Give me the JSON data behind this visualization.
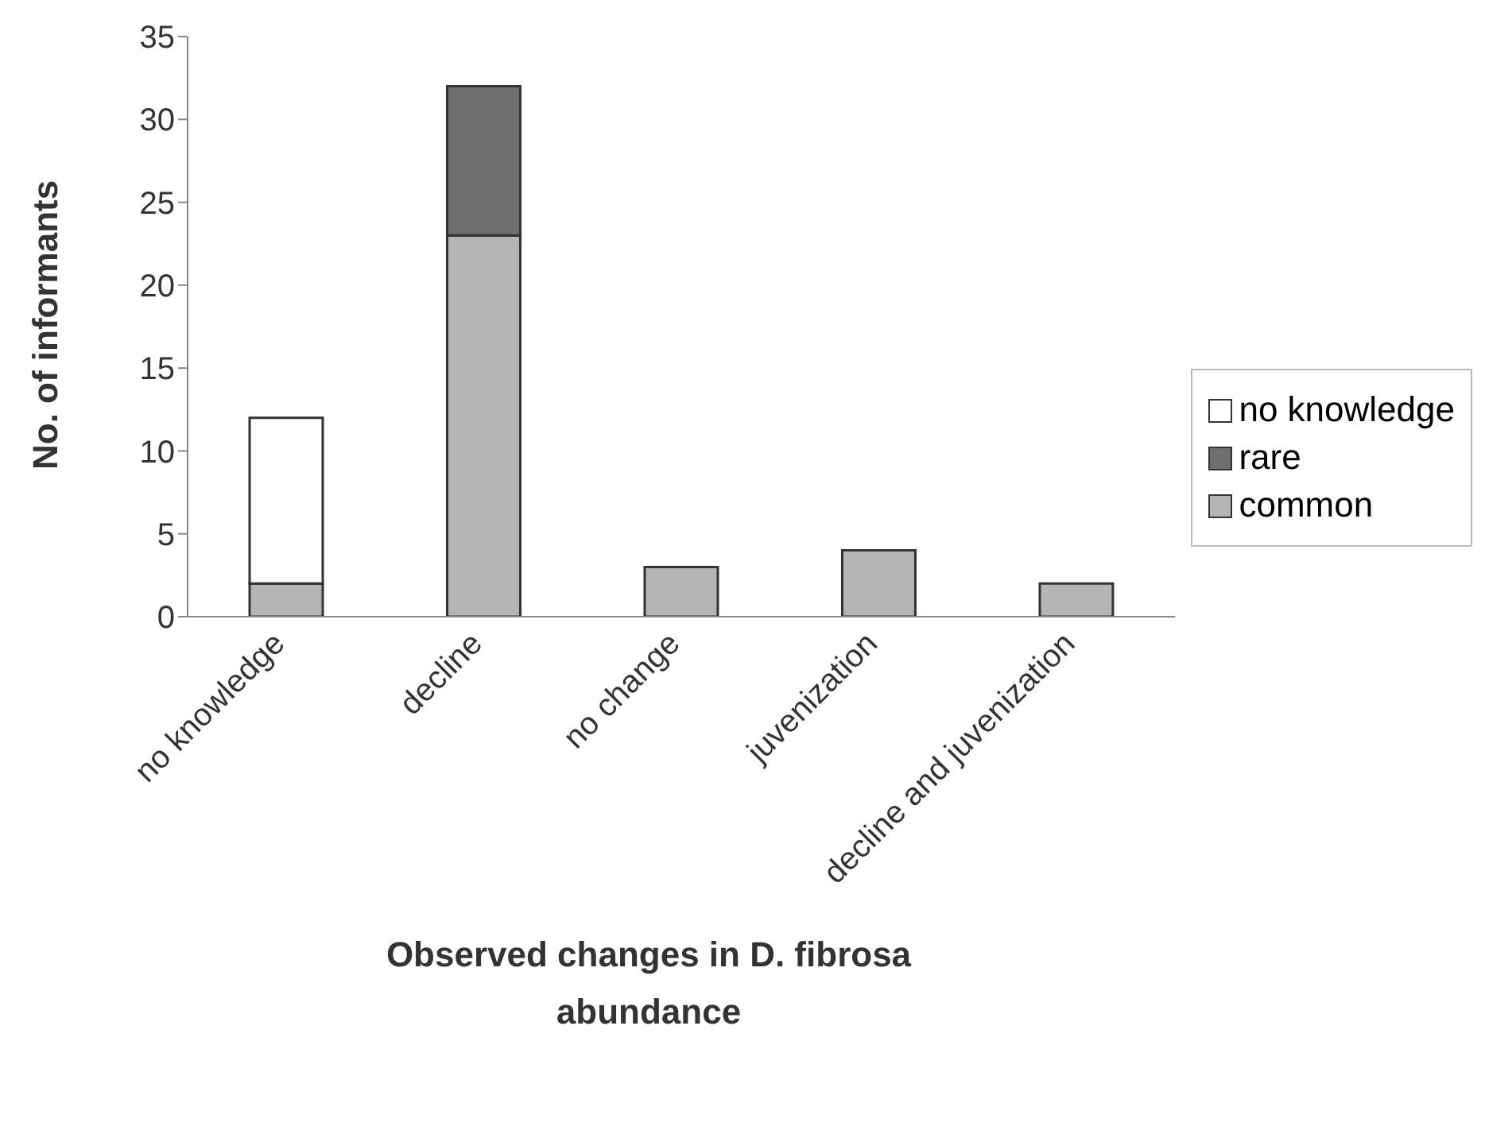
{
  "chart_data": {
    "type": "bar",
    "stacked": true,
    "xlabel": "Observed changes in D. fibrosa abundance",
    "ylabel": "No. of informants",
    "categories": [
      "no knowledge",
      "decline",
      "no change",
      "juvenization",
      "decline and juvenization"
    ],
    "series": [
      {
        "name": "common",
        "color": "#b4b4b4",
        "values": [
          2,
          23,
          3,
          4,
          2
        ]
      },
      {
        "name": "rare",
        "color": "#6e6e6e",
        "values": [
          0,
          9,
          0,
          0,
          0
        ]
      },
      {
        "name": "no knowledge",
        "color": "#ffffff",
        "values": [
          10,
          0,
          0,
          0,
          0
        ]
      }
    ],
    "ylim": [
      0,
      35
    ],
    "yticks": [
      0,
      5,
      10,
      15,
      20,
      25,
      30,
      35
    ],
    "grid": false,
    "legend": "right"
  }
}
